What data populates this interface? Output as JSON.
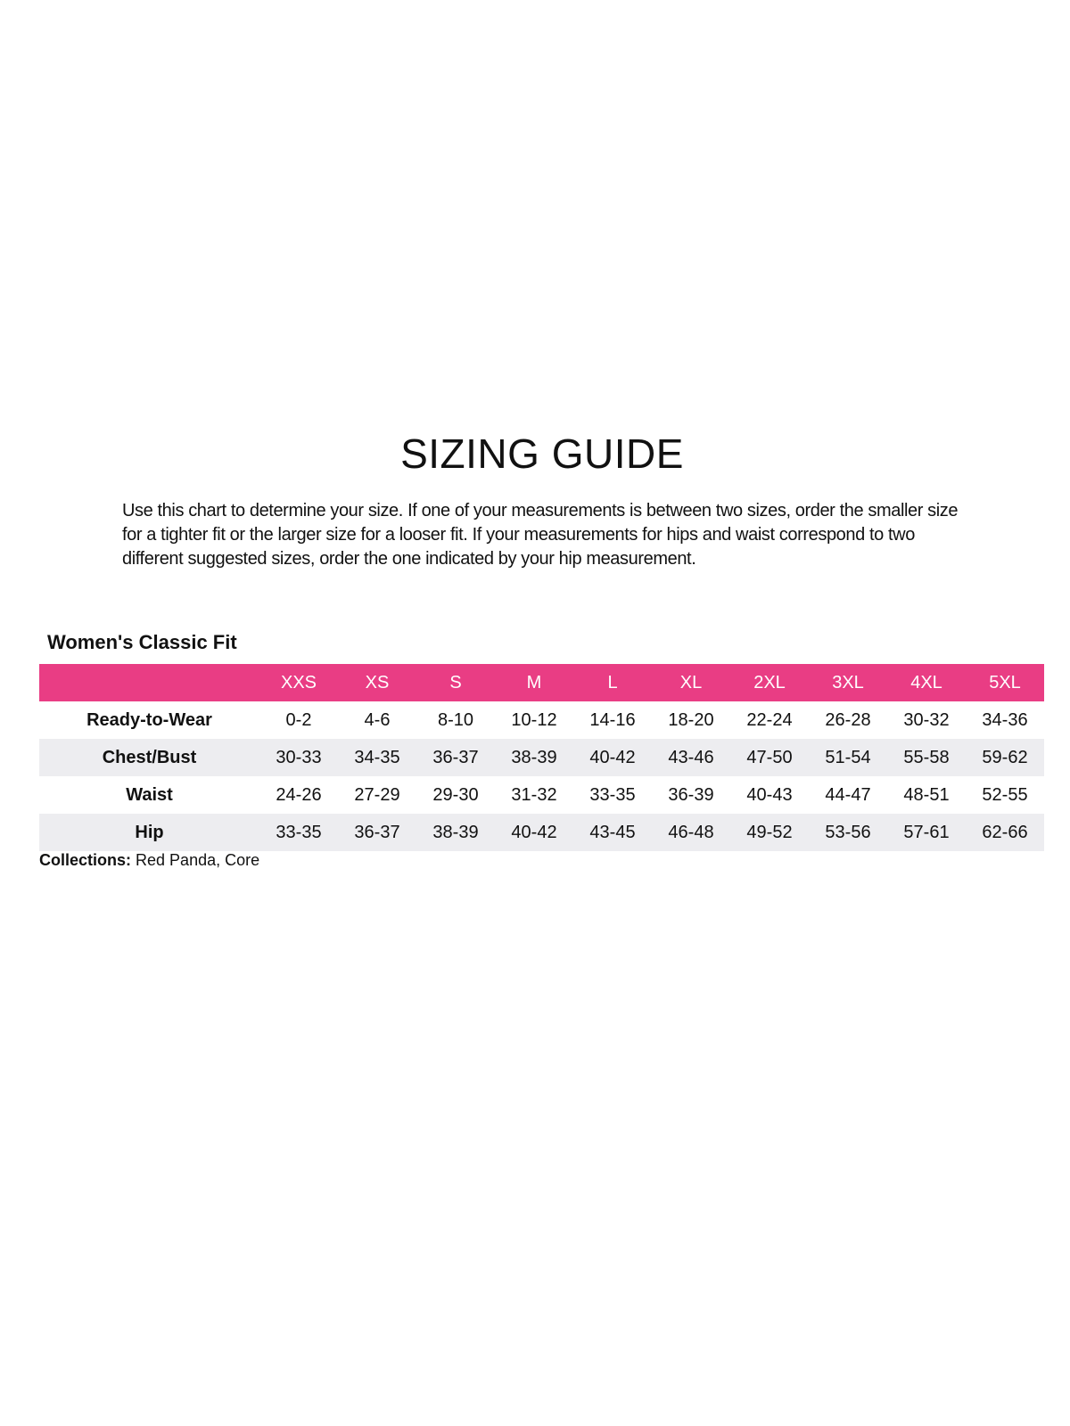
{
  "title": "SIZING GUIDE",
  "intro": "Use this chart to determine your size. If one of your measurements is between two sizes, order the smaller size for a tighter fit or the larger size for a looser fit. If your measurements for hips and waist correspond to two different suggested sizes, order the one indicated by your hip measurement.",
  "fit_title": "Women's Classic Fit",
  "colors": {
    "header": "#e93d84",
    "alt_row": "#ededf0"
  },
  "sizes": [
    "XXS",
    "XS",
    "S",
    "M",
    "L",
    "XL",
    "2XL",
    "3XL",
    "4XL",
    "5XL"
  ],
  "rows": [
    {
      "label": "Ready-to-Wear",
      "values": [
        "0-2",
        "4-6",
        "8-10",
        "10-12",
        "14-16",
        "18-20",
        "22-24",
        "26-28",
        "30-32",
        "34-36"
      ]
    },
    {
      "label": "Chest/Bust",
      "values": [
        "30-33",
        "34-35",
        "36-37",
        "38-39",
        "40-42",
        "43-46",
        "47-50",
        "51-54",
        "55-58",
        "59-62"
      ]
    },
    {
      "label": "Waist",
      "values": [
        "24-26",
        "27-29",
        "29-30",
        "31-32",
        "33-35",
        "36-39",
        "40-43",
        "44-47",
        "48-51",
        "52-55"
      ]
    },
    {
      "label": "Hip",
      "values": [
        "33-35",
        "36-37",
        "38-39",
        "40-42",
        "43-45",
        "46-48",
        "49-52",
        "53-56",
        "57-61",
        "62-66"
      ]
    }
  ],
  "collections": {
    "label": "Collections:",
    "value": "Red Panda, Core"
  }
}
